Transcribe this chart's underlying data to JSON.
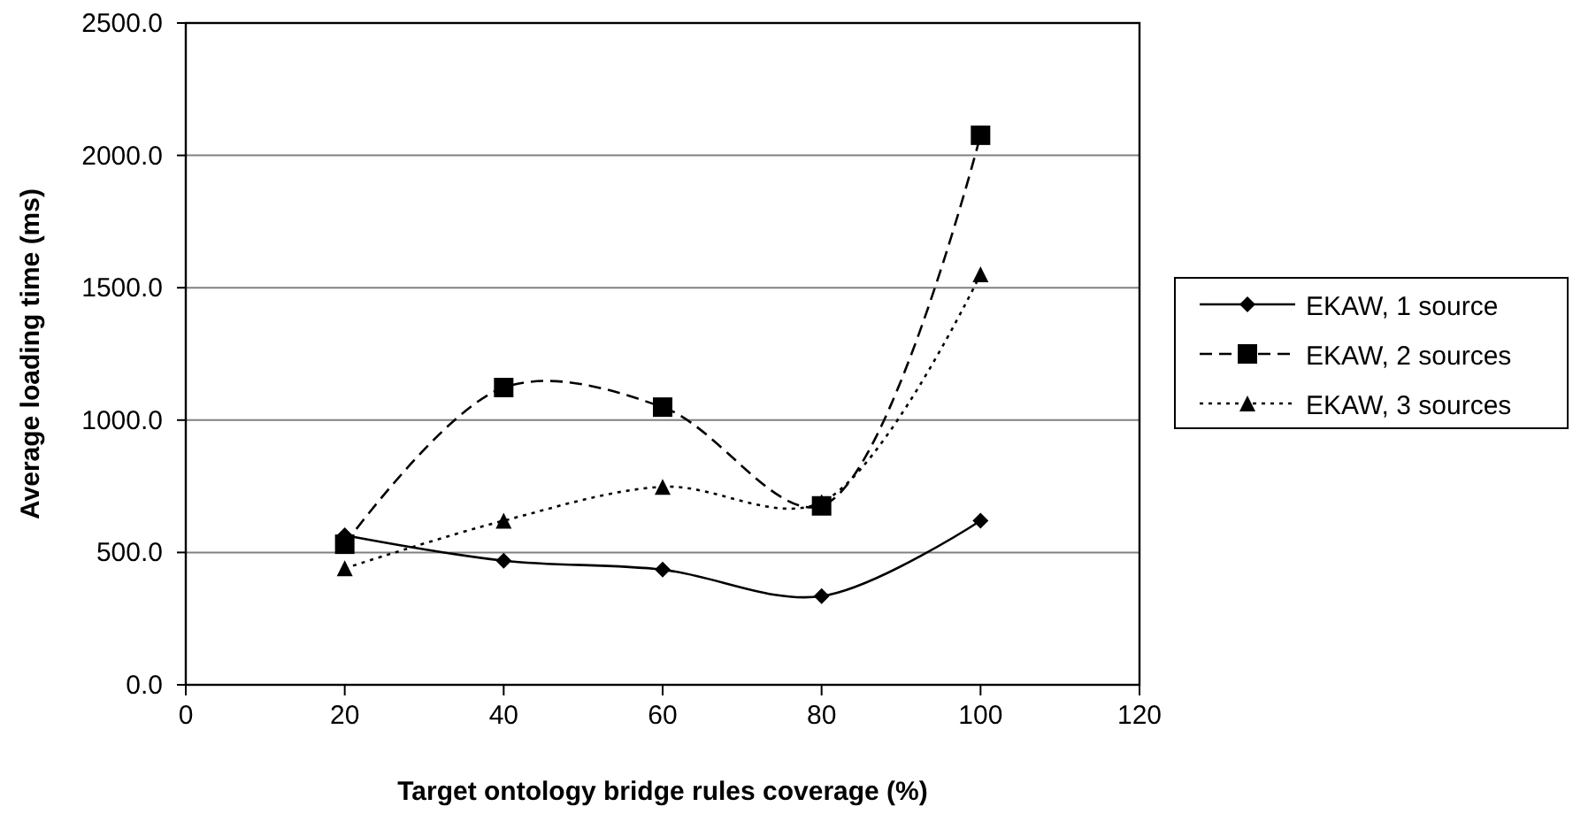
{
  "chart_data": {
    "type": "line",
    "xlabel": "Target ontology bridge rules coverage (%)",
    "ylabel": "Average loading time (ms)",
    "x": [
      20,
      40,
      60,
      80,
      100
    ],
    "series": [
      {
        "name": "EKAW, 1 source",
        "color": "#000000",
        "values": [
          565,
          469,
          435,
          335,
          620
        ],
        "marker": "diamond",
        "line_style": "solid"
      },
      {
        "name": "EKAW, 2 sources",
        "color": "#000000",
        "values": [
          531,
          1123,
          1049,
          676,
          2076
        ],
        "marker": "square",
        "line_style": "dashed"
      },
      {
        "name": "EKAW, 3 sources",
        "color": "#000000",
        "values": [
          440,
          620,
          748,
          690,
          1551
        ],
        "marker": "triangle",
        "line_style": "dotted"
      }
    ],
    "xlim": [
      0,
      120
    ],
    "xticks": [
      0,
      20,
      40,
      60,
      80,
      100,
      120
    ],
    "ylim": [
      0,
      2500
    ],
    "yticks": [
      {
        "value": 0,
        "label": "0.0"
      },
      {
        "value": 500,
        "label": "500.0"
      },
      {
        "value": 1000,
        "label": "1000.0"
      },
      {
        "value": 1500,
        "label": "1500.0"
      },
      {
        "value": 2000,
        "label": "2000.0"
      },
      {
        "value": 2500,
        "label": "2500.0"
      }
    ],
    "grid": "y",
    "legend": "right"
  }
}
